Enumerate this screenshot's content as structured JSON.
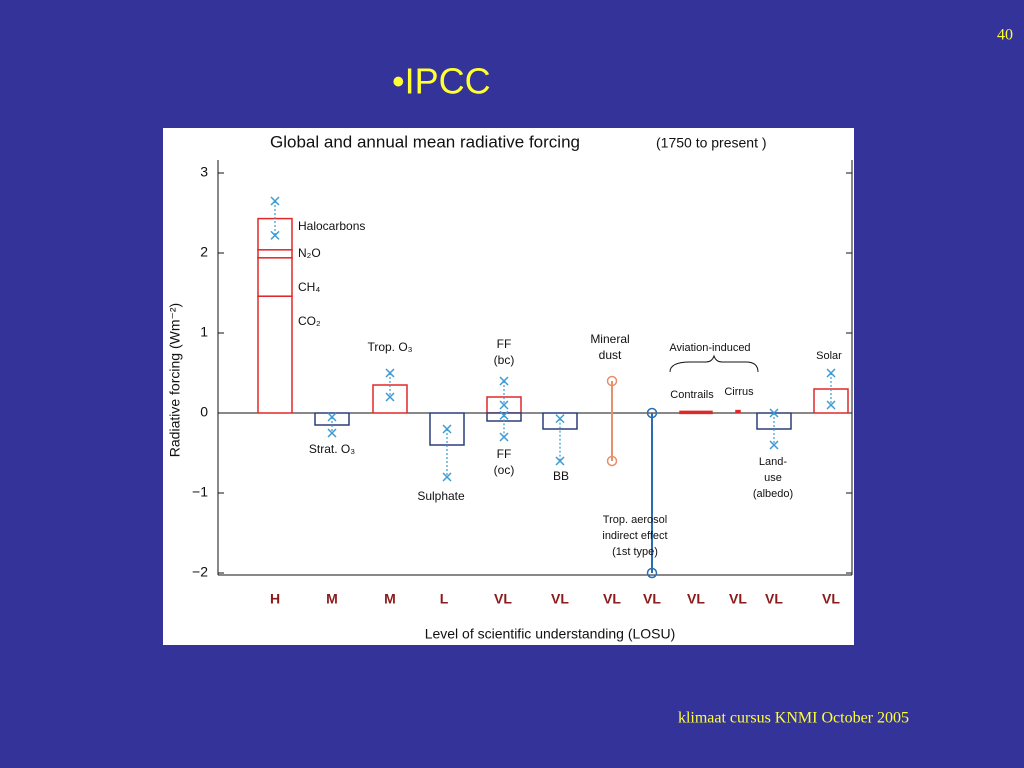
{
  "slide_number": "40",
  "heading": "•IPCC",
  "footer": "klimaat cursus KNMI  October 2005",
  "chart_data": {
    "type": "bar",
    "title": "Global and annual mean radiative forcing",
    "title_note": "(1750 to present )",
    "ylabel": "Radiative forcing  (Wm⁻²)",
    "xlabel": "Level  of scientific understanding (LOSU)",
    "group_label": "Aviation-induced",
    "ylim": [
      -2,
      3
    ],
    "yticks": [
      {
        "value": -2,
        "label": "−2"
      },
      {
        "value": -1,
        "label": "−1"
      },
      0,
      1,
      2,
      3
    ],
    "error_color": "#3a9bd5",
    "items": [
      {
        "segments": [
          {
            "name": "CO₂",
            "value": 1.46
          },
          {
            "name": "CH₄",
            "value": 0.48
          },
          {
            "name": "N₂O",
            "value": 0.1
          },
          {
            "name": "Halocarbons",
            "value": 0.39
          }
        ],
        "range": [
          2.65,
          2.22
        ],
        "losu": "H",
        "color": "#e02828"
      },
      {
        "label": [
          "Strat. O₃"
        ],
        "value": -0.15,
        "range": [
          -0.05,
          -0.25
        ],
        "losu": "M",
        "color": "#2c3e7a"
      },
      {
        "label": [
          "Trop. O₃"
        ],
        "value": 0.35,
        "range": [
          0.5,
          0.2
        ],
        "losu": "M",
        "color": "#e02828"
      },
      {
        "label": [
          "Sulphate"
        ],
        "value": -0.4,
        "range": [
          -0.2,
          -0.8
        ],
        "losu": "L",
        "color": "#2c3e7a"
      },
      {
        "label": [
          "FF",
          "(bc)"
        ],
        "value": 0.2,
        "range": [
          0.4,
          0.1
        ],
        "losu": "VL",
        "color": "#e02828"
      },
      {
        "label": [
          "FF",
          "(oc)"
        ],
        "value": -0.1,
        "range": [
          -0.03,
          -0.3
        ],
        "color": "#2c3e7a"
      },
      {
        "label": [
          "BB"
        ],
        "value": -0.2,
        "range": [
          -0.07,
          -0.6
        ],
        "losu": "VL",
        "color": "#2c3e7a"
      },
      {
        "label": [
          "Mineral",
          "dust"
        ],
        "range": [
          0.4,
          -0.6
        ],
        "losu": "VL",
        "color": "#e8906a"
      },
      {
        "label": [
          "Trop. aerosol",
          "indirect effect",
          "(1st type)"
        ],
        "range": [
          0,
          -2
        ],
        "losu": "VL",
        "color": "#2a6db5"
      },
      {
        "label": [
          "Contrails"
        ],
        "value": 0.02,
        "losu": "VL",
        "color": "#e02828"
      },
      {
        "label": [
          "Cirrus"
        ],
        "value": 0.03,
        "losu": "VL",
        "color": "#e02828"
      },
      {
        "label": [
          "Land-",
          "use",
          "(albedo)"
        ],
        "value": -0.2,
        "range": [
          0,
          -0.4
        ],
        "losu": "VL",
        "color": "#2c3e7a"
      },
      {
        "label": [
          "Solar"
        ],
        "value": 0.3,
        "range": [
          0.5,
          0.1
        ],
        "losu": "VL",
        "color": "#e02828"
      }
    ]
  }
}
